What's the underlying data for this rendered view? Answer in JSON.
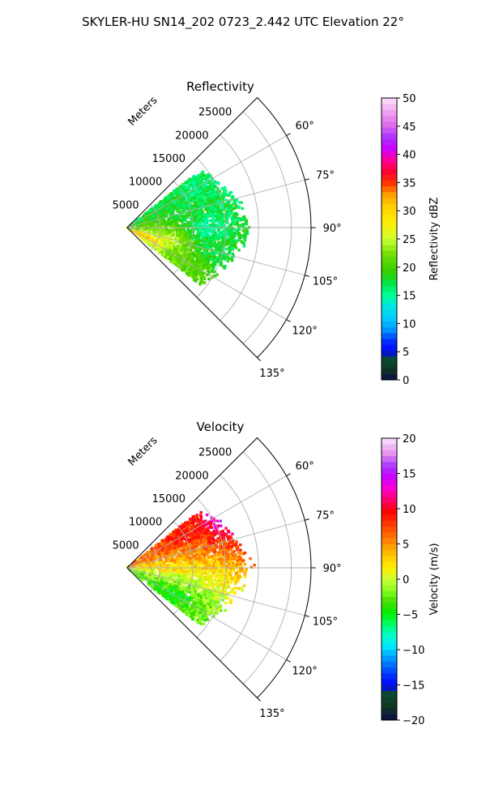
{
  "figure_title": "SKYLER-HU  SN14_202  0723_2.442 UTC Elevation 22°",
  "chart_data": [
    {
      "type": "heatmap",
      "projection": "polar-sector",
      "title": "Reflectivity",
      "radial_label": "Meters",
      "radial_ticks": [
        5000,
        10000,
        15000,
        20000,
        25000
      ],
      "radial_tick_labels": [
        "5000",
        "10000",
        "15000",
        "20000",
        "25000"
      ],
      "rmax": 28000,
      "theta_range_deg": [
        45,
        135
      ],
      "theta_ticks_deg": [
        60,
        75,
        90,
        105,
        120,
        135
      ],
      "theta_tick_labels": [
        "60°",
        "75°",
        "90°",
        "105°",
        "120°",
        "135°"
      ],
      "grid": true,
      "colorbar": {
        "label": "Reflectivity dBZ",
        "min": 0,
        "max": 50,
        "ticks": [
          0,
          5,
          10,
          15,
          20,
          25,
          30,
          35,
          40,
          45,
          50
        ],
        "tick_labels": [
          "0",
          "5",
          "10",
          "15",
          "20",
          "25",
          "30",
          "35",
          "40",
          "45",
          "50"
        ]
      },
      "echo_region": {
        "theta_deg": [
          52,
          128
        ],
        "range_m": [
          0,
          18000
        ]
      },
      "profile": [
        {
          "theta_deg": 55,
          "r_m": 4000,
          "value": 17
        },
        {
          "theta_deg": 60,
          "r_m": 12000,
          "value": 16
        },
        {
          "theta_deg": 62,
          "r_m": 18000,
          "value": 15
        },
        {
          "theta_deg": 75,
          "r_m": 9000,
          "value": 18
        },
        {
          "theta_deg": 75,
          "r_m": 17000,
          "value": 17
        },
        {
          "theta_deg": 90,
          "r_m": 5000,
          "value": 22
        },
        {
          "theta_deg": 90,
          "r_m": 12000,
          "value": 14
        },
        {
          "theta_deg": 105,
          "r_m": 6000,
          "value": 26
        },
        {
          "theta_deg": 105,
          "r_m": 14000,
          "value": 17
        },
        {
          "theta_deg": 115,
          "r_m": 3000,
          "value": 32
        },
        {
          "theta_deg": 120,
          "r_m": 10000,
          "value": 21
        }
      ]
    },
    {
      "type": "heatmap",
      "projection": "polar-sector",
      "title": "Velocity",
      "radial_label": "Meters",
      "radial_ticks": [
        5000,
        10000,
        15000,
        20000,
        25000
      ],
      "radial_tick_labels": [
        "5000",
        "10000",
        "15000",
        "20000",
        "25000"
      ],
      "rmax": 28000,
      "theta_range_deg": [
        45,
        135
      ],
      "theta_ticks_deg": [
        60,
        75,
        90,
        105,
        120,
        135
      ],
      "theta_tick_labels": [
        "60°",
        "75°",
        "90°",
        "105°",
        "120°",
        "135°"
      ],
      "grid": true,
      "colorbar": {
        "label": "Velocity (m/s)",
        "min": -20,
        "max": 20,
        "ticks": [
          -20,
          -15,
          -10,
          -5,
          0,
          5,
          10,
          15,
          20
        ],
        "tick_labels": [
          "−20",
          "−15",
          "−10",
          "−5",
          "0",
          "5",
          "10",
          "15",
          "20"
        ]
      },
      "echo_region": {
        "theta_deg": [
          52,
          128
        ],
        "range_m": [
          0,
          18000
        ]
      },
      "profile": [
        {
          "theta_deg": 60,
          "r_m": 10000,
          "value": 9
        },
        {
          "theta_deg": 62,
          "r_m": 17000,
          "value": 15
        },
        {
          "theta_deg": 75,
          "r_m": 9000,
          "value": 6
        },
        {
          "theta_deg": 90,
          "r_m": 8000,
          "value": 2
        },
        {
          "theta_deg": 105,
          "r_m": 8000,
          "value": -1
        },
        {
          "theta_deg": 115,
          "r_m": 8000,
          "value": -4
        },
        {
          "theta_deg": 120,
          "r_m": 8000,
          "value": -5
        }
      ]
    }
  ]
}
